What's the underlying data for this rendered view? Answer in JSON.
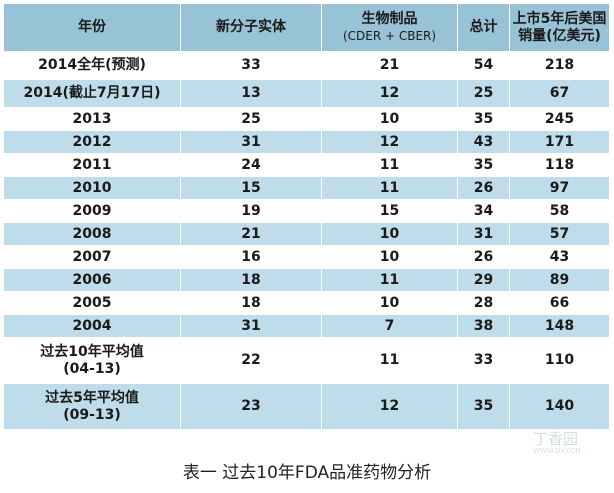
{
  "headers": {
    "year": "年份",
    "nme": "新分子实体",
    "bio": "生物制品",
    "bio_sub": "(CDER + CBER)",
    "total": "总计",
    "sales_line1": "上市5年后美国",
    "sales_line2": "销量(亿美元)"
  },
  "rows": [
    {
      "year": "2014全年(预测)",
      "nme": "33",
      "bio": "21",
      "total": "54",
      "sales": "218"
    },
    {
      "year": "2014(截止7月17日)",
      "nme": "13",
      "bio": "12",
      "total": "25",
      "sales": "67"
    },
    {
      "year": "2013",
      "nme": "25",
      "bio": "10",
      "total": "35",
      "sales": "245"
    },
    {
      "year": "2012",
      "nme": "31",
      "bio": "12",
      "total": "43",
      "sales": "171"
    },
    {
      "year": "2011",
      "nme": "24",
      "bio": "11",
      "total": "35",
      "sales": "118"
    },
    {
      "year": "2010",
      "nme": "15",
      "bio": "11",
      "total": "26",
      "sales": "97"
    },
    {
      "year": "2009",
      "nme": "19",
      "bio": "15",
      "total": "34",
      "sales": "58"
    },
    {
      "year": "2008",
      "nme": "21",
      "bio": "10",
      "total": "31",
      "sales": "57"
    },
    {
      "year": "2007",
      "nme": "16",
      "bio": "10",
      "total": "26",
      "sales": "43"
    },
    {
      "year": "2006",
      "nme": "18",
      "bio": "11",
      "total": "29",
      "sales": "89"
    },
    {
      "year": "2005",
      "nme": "18",
      "bio": "10",
      "total": "28",
      "sales": "66"
    },
    {
      "year": "2004",
      "nme": "31",
      "bio": "7",
      "total": "38",
      "sales": "148"
    }
  ],
  "avg10": {
    "label1": "过去10年平均值",
    "label2": "(04-13)",
    "nme": "22",
    "bio": "11",
    "total": "33",
    "sales": "110"
  },
  "avg5": {
    "label1": "过去5年平均值",
    "label2": "(09-13)",
    "nme": "23",
    "bio": "12",
    "total": "35",
    "sales": "140"
  },
  "caption": "表一 过去10年FDA品准药物分析",
  "watermark": "丁香园",
  "watermark_sub": "WWW.DXY.CN",
  "colors": {
    "header": "#98c3d6",
    "stripe": "#bfdcea",
    "row": "#ffffff"
  }
}
